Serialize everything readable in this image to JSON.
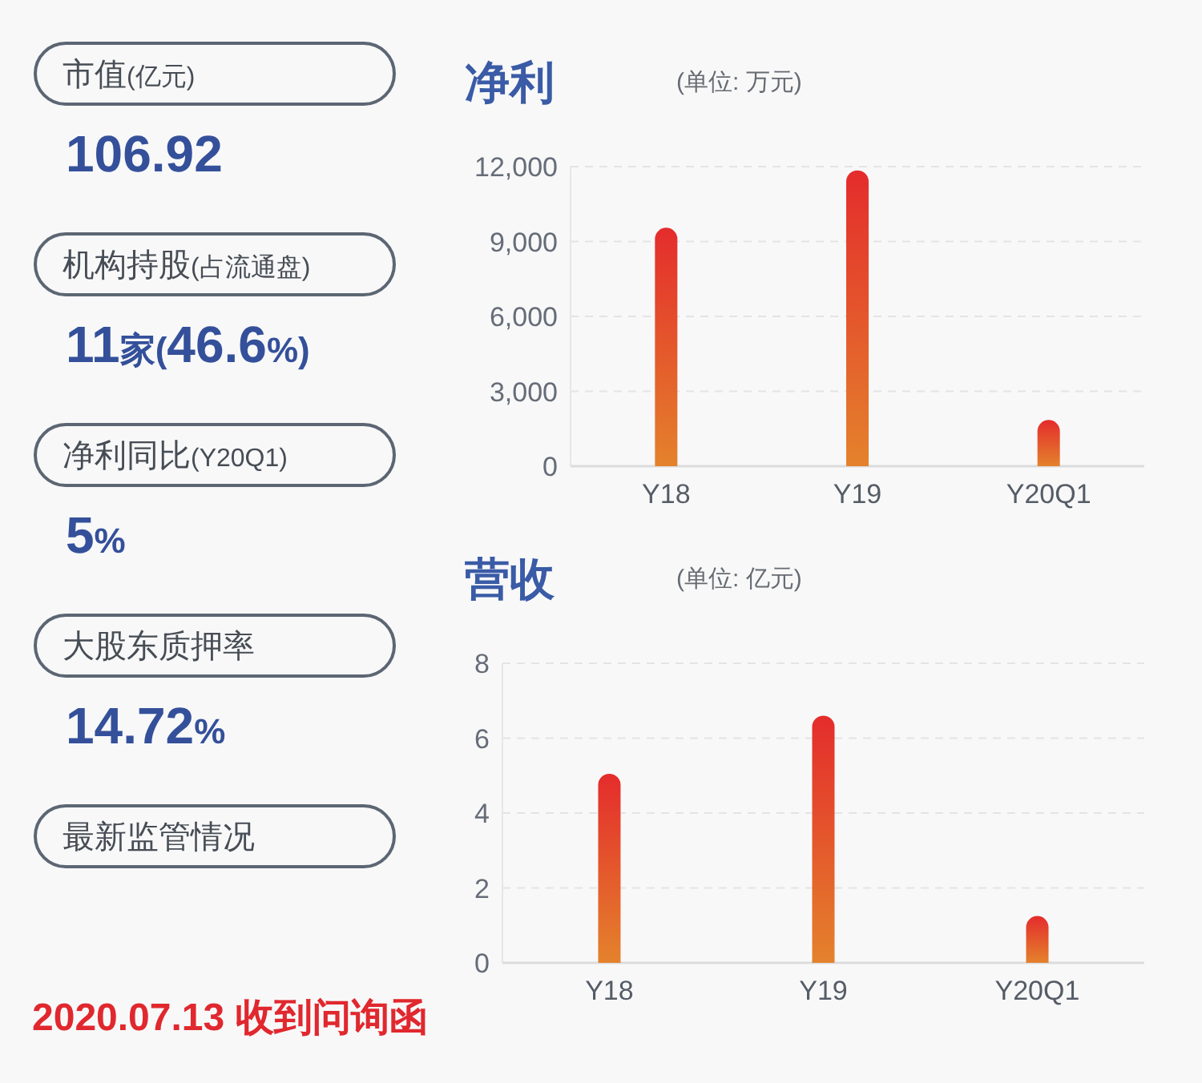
{
  "chart_data": [
    {
      "type": "other",
      "annotations": [
        "市值(亿元)",
        "106.92",
        "机构持股(占流通盘)",
        "11家(46.6%)",
        "净利同比(Y20Q1)",
        "5%",
        "大股东质押率",
        "14.72%",
        "最新监管情况",
        "2020.07.13 收到问询函"
      ]
    },
    {
      "type": "bar",
      "title": "净利",
      "subtitle": "(单位: 万元)",
      "categories": [
        "Y18",
        "Y19",
        "Y20Q1"
      ],
      "values": [
        9550,
        11850,
        1850
      ],
      "color": "#e4572c",
      "ylim": [
        0,
        12000
      ],
      "yticks": [
        0,
        {
          "value": 3000,
          "label": "3,000"
        },
        {
          "value": 6000,
          "label": "6,000"
        },
        {
          "value": 9000,
          "label": "9,000"
        },
        {
          "value": 12000,
          "label": "12,000"
        }
      ],
      "grid": "y"
    },
    {
      "type": "bar",
      "title": "营收",
      "subtitle": "(单位: 亿元)",
      "categories": [
        "Y18",
        "Y19",
        "Y20Q1"
      ],
      "values": [
        5.05,
        6.6,
        1.25
      ],
      "color": "#e4572c",
      "ylim": [
        0,
        8
      ],
      "yticks": [
        0,
        2,
        4,
        6,
        8
      ],
      "grid": "y"
    }
  ]
}
